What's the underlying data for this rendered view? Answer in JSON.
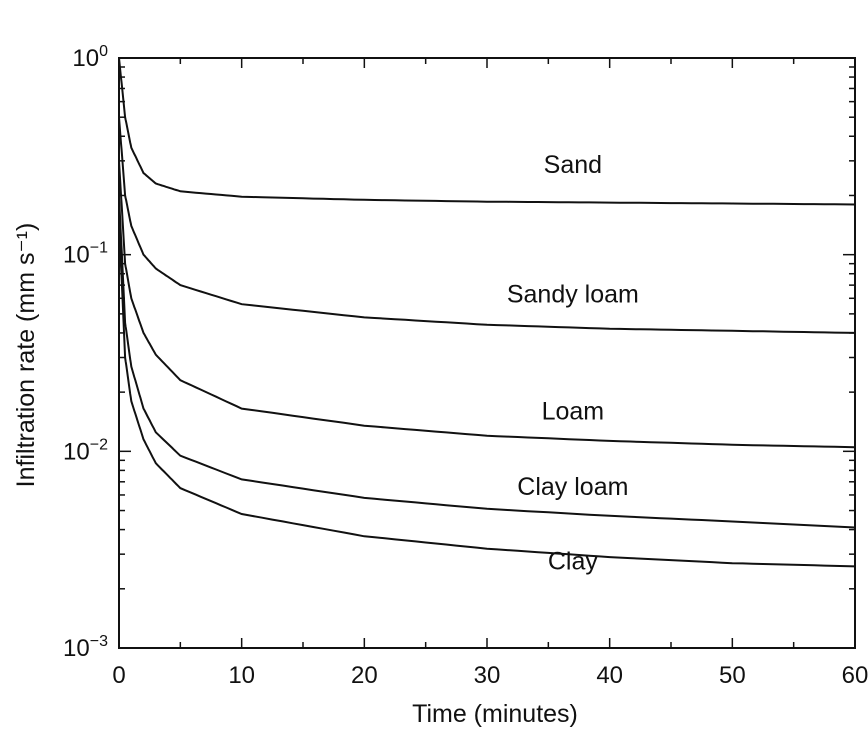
{
  "chart_data": {
    "type": "line",
    "xlabel": "Time (minutes)",
    "ylabel": "Infiltration rate (mm s⁻¹)",
    "xlim": [
      0,
      60
    ],
    "ylim": [
      0.001,
      1
    ],
    "yscale": "log",
    "x_ticks": [
      0,
      10,
      20,
      30,
      40,
      50,
      60
    ],
    "y_ticks": [
      {
        "value": 1,
        "base": "10",
        "exp": "0"
      },
      {
        "value": 0.1,
        "base": "10",
        "exp": "−1"
      },
      {
        "value": 0.01,
        "base": "10",
        "exp": "−2"
      },
      {
        "value": 0.001,
        "base": "10",
        "exp": "−3"
      }
    ],
    "grid": false,
    "legend": "none",
    "series": [
      {
        "name": "Sand",
        "color": "#111111",
        "x": [
          0,
          0.5,
          1,
          2,
          3,
          5,
          10,
          20,
          30,
          40,
          50,
          60
        ],
        "y": [
          1.0,
          0.5,
          0.35,
          0.26,
          0.23,
          0.21,
          0.197,
          0.19,
          0.186,
          0.184,
          0.182,
          0.18
        ]
      },
      {
        "name": "Sandy loam",
        "color": "#111111",
        "x": [
          0,
          0.5,
          1,
          2,
          3,
          5,
          10,
          20,
          30,
          40,
          50,
          60
        ],
        "y": [
          0.5,
          0.2,
          0.14,
          0.1,
          0.085,
          0.07,
          0.056,
          0.048,
          0.044,
          0.042,
          0.041,
          0.04
        ]
      },
      {
        "name": "Loam",
        "color": "#111111",
        "x": [
          0,
          0.5,
          1,
          2,
          3,
          5,
          10,
          20,
          30,
          40,
          50,
          60
        ],
        "y": [
          0.3,
          0.09,
          0.06,
          0.04,
          0.031,
          0.023,
          0.0165,
          0.0135,
          0.012,
          0.0113,
          0.0108,
          0.0105
        ]
      },
      {
        "name": "Clay loam",
        "color": "#111111",
        "x": [
          0,
          0.5,
          1,
          2,
          3,
          5,
          10,
          20,
          30,
          40,
          50,
          60
        ],
        "y": [
          0.2,
          0.045,
          0.027,
          0.0165,
          0.0125,
          0.0095,
          0.0072,
          0.0058,
          0.0051,
          0.0047,
          0.0044,
          0.0041
        ]
      },
      {
        "name": "Clay",
        "color": "#111111",
        "x": [
          0,
          0.5,
          1,
          2,
          3,
          5,
          10,
          20,
          30,
          40,
          50,
          60
        ],
        "y": [
          0.15,
          0.03,
          0.018,
          0.0115,
          0.0087,
          0.0065,
          0.0048,
          0.0037,
          0.0032,
          0.0029,
          0.0027,
          0.0026
        ]
      }
    ],
    "annotations": [
      {
        "text": "Sand",
        "x": 37,
        "y": 0.26
      },
      {
        "text": "Sandy loam",
        "x": 37,
        "y": 0.057
      },
      {
        "text": "Loam",
        "x": 37,
        "y": 0.0145
      },
      {
        "text": "Clay loam",
        "x": 37,
        "y": 0.006
      },
      {
        "text": "Clay",
        "x": 37,
        "y": 0.0025
      }
    ]
  }
}
